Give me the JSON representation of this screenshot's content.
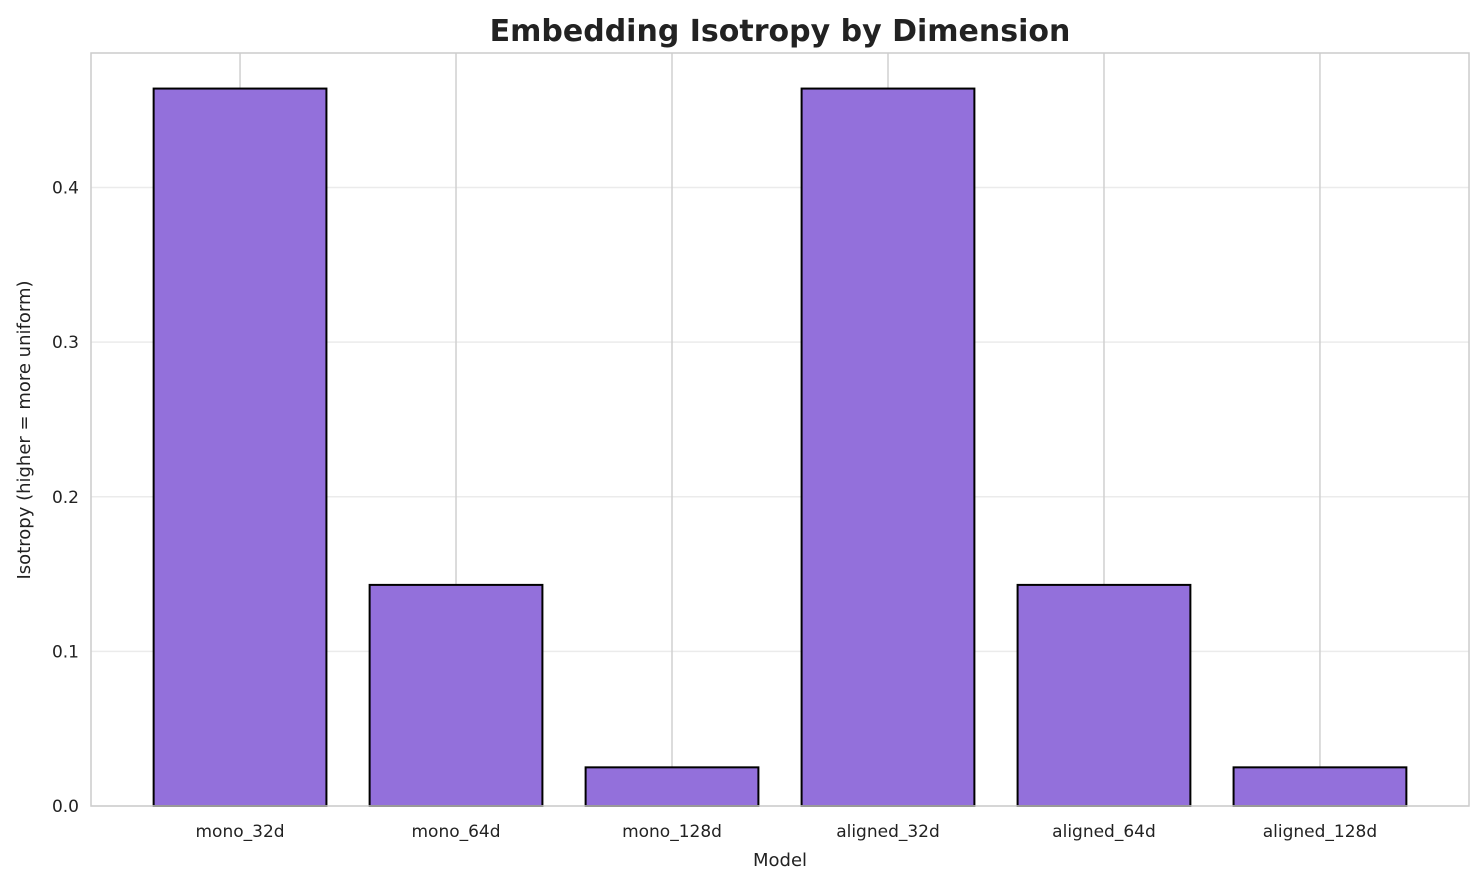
{
  "chart_data": {
    "type": "bar",
    "title": "Embedding Isotropy by Dimension",
    "xlabel": "Model",
    "ylabel": "Isotropy (higher = more uniform)",
    "categories": [
      "mono_32d",
      "mono_64d",
      "mono_128d",
      "aligned_32d",
      "aligned_64d",
      "aligned_128d"
    ],
    "values": [
      0.464,
      0.143,
      0.025,
      0.464,
      0.143,
      0.025
    ],
    "ylim": [
      0,
      0.487
    ],
    "yticks": [
      "0.0",
      "0.1",
      "0.2",
      "0.3",
      "0.4"
    ],
    "grid": true,
    "bar_color": "#9370DB",
    "edge_color": "#000000"
  }
}
